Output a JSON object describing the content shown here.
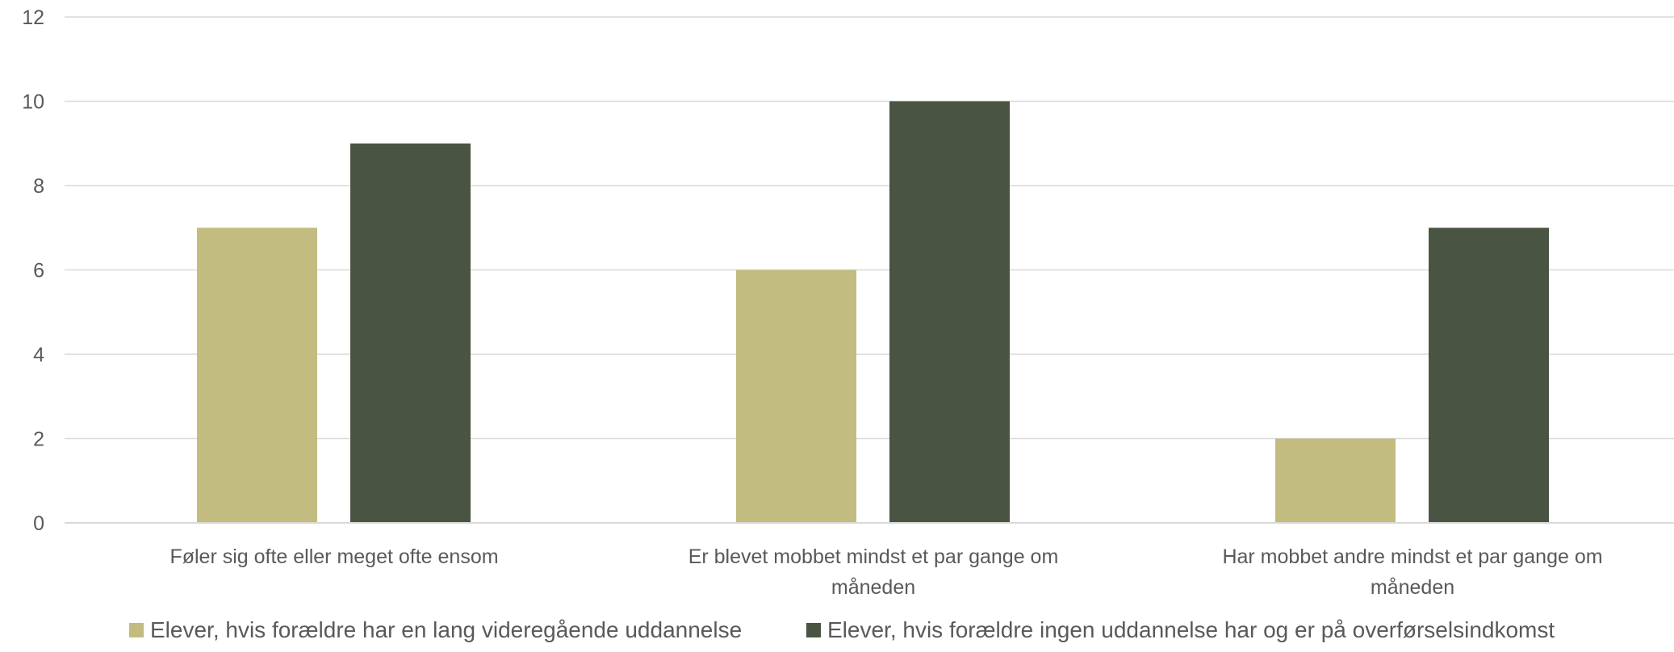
{
  "chart_data": {
    "type": "bar",
    "title": "",
    "xlabel": "",
    "ylabel": "",
    "ylim": [
      0,
      12
    ],
    "yticks": [
      0,
      2,
      4,
      6,
      8,
      10,
      12
    ],
    "grid": true,
    "legend_position": "bottom",
    "categories": [
      [
        "Føler sig ofte eller meget ofte ensom"
      ],
      [
        "Er blevet mobbet mindst et par gange om",
        "måneden"
      ],
      [
        "Har mobbet andre mindst et par gange om",
        "måneden"
      ]
    ],
    "series": [
      {
        "name": "Elever, hvis forældre har en lang videregående uddannelse",
        "color": "#c2bc80",
        "values": [
          7,
          6,
          2
        ]
      },
      {
        "name": "Elever, hvis forældre ingen uddannelse har og er på overførselsindkomst",
        "color": "#4a5443",
        "values": [
          9,
          10,
          7
        ]
      }
    ]
  }
}
